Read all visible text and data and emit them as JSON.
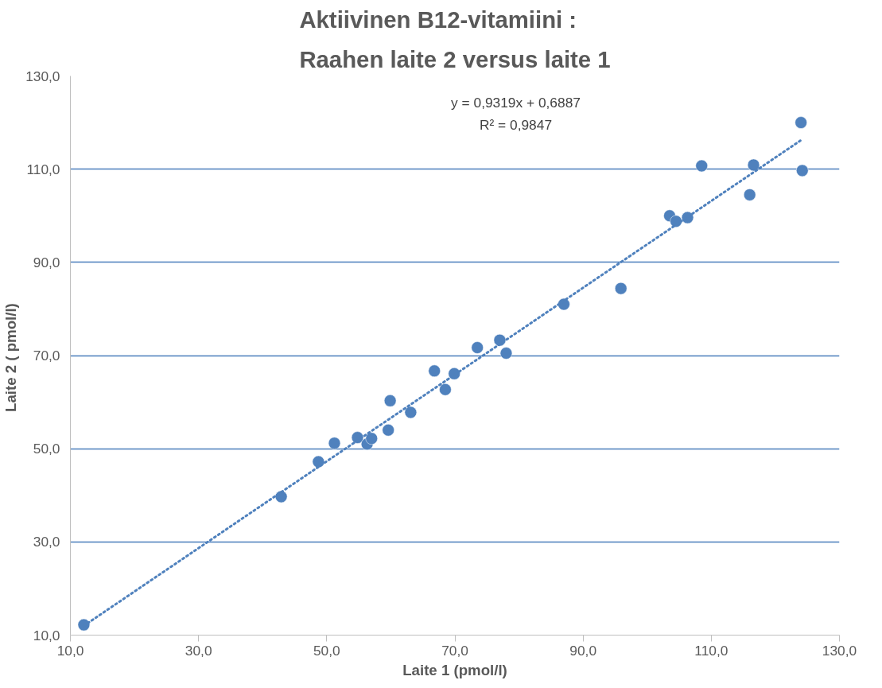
{
  "chart_data": {
    "type": "scatter",
    "title": "Aktiivinen B12-vitamiini :\nRaahen laite 2 versus laite 1",
    "xlabel": "Laite 1 (pmol/l)",
    "ylabel": "Laite 2  ( pmol/l)",
    "series": [
      {
        "color": "#4f81bd",
        "marker": "circle",
        "x": [
          12.1,
          42.9,
          48.7,
          51.2,
          54.8,
          56.3,
          57.0,
          59.6,
          59.9,
          63.1,
          66.8,
          68.5,
          69.9,
          73.5,
          77.0,
          78.0,
          87.0,
          95.9,
          103.5,
          104.5,
          106.3,
          108.5,
          116.0,
          116.6,
          124.0,
          124.2
        ],
        "values": [
          12.2,
          39.7,
          47.2,
          51.2,
          52.4,
          51.0,
          52.2,
          54.0,
          60.3,
          57.8,
          66.7,
          62.7,
          66.1,
          71.7,
          73.3,
          70.5,
          81.0,
          84.4,
          100.0,
          98.8,
          99.6,
          110.7,
          104.5,
          110.9,
          120.0,
          109.7
        ]
      },
      {
        "type": "line",
        "color": "#4f81bd",
        "line_style": "dotted",
        "marker": "none",
        "x": [
          12.1,
          124.2
        ],
        "values": [
          12.0,
          116.4
        ]
      }
    ],
    "annotations": [
      "y = 0,9319x + 0,6887",
      "R² = 0,9847"
    ],
    "xlim": [
      10,
      130
    ],
    "ylim": [
      10,
      130
    ],
    "xticks": [
      {
        "value": 10,
        "label": "10,0"
      },
      {
        "value": 30,
        "label": "30,0"
      },
      {
        "value": 50,
        "label": "50,0"
      },
      {
        "value": 70,
        "label": "70,0"
      },
      {
        "value": 90,
        "label": "90,0"
      },
      {
        "value": 110,
        "label": "110,0"
      },
      {
        "value": 130,
        "label": "130,0"
      }
    ],
    "yticks": [
      {
        "value": 10,
        "label": "10,0"
      },
      {
        "value": 30,
        "label": "30,0"
      },
      {
        "value": 50,
        "label": "50,0"
      },
      {
        "value": 70,
        "label": "70,0"
      },
      {
        "value": 90,
        "label": "90,0"
      },
      {
        "value": 110,
        "label": "110,0"
      },
      {
        "value": 130,
        "label": "130,0"
      }
    ],
    "grid": "y"
  }
}
